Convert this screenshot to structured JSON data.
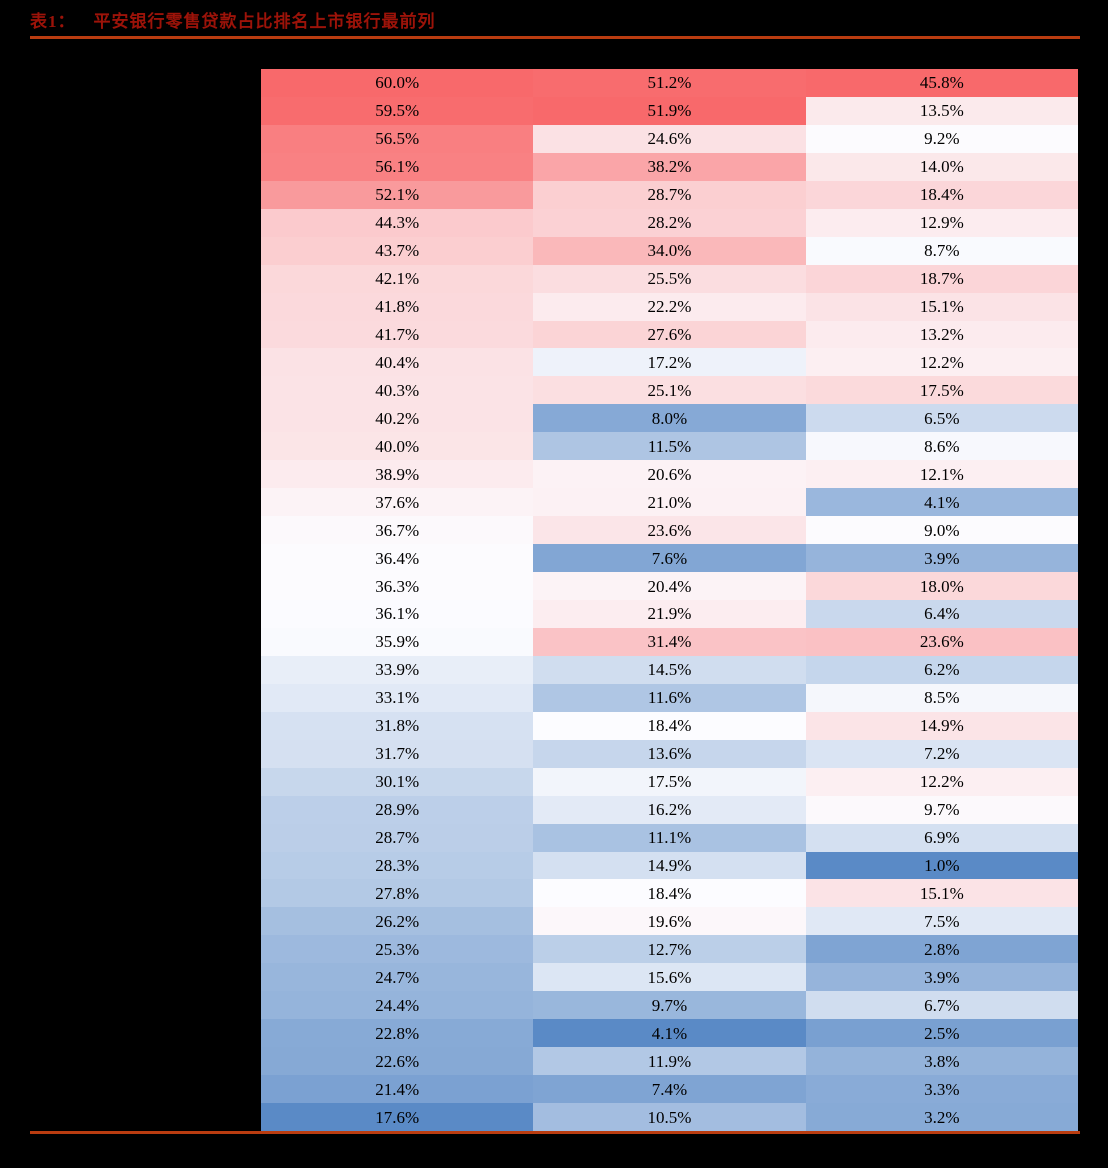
{
  "page": {
    "background_color": "#000000",
    "table_number": "表1：",
    "title": "平安银行零售贷款占比排名上市银行最前列",
    "title_color": "#9C1309",
    "rule_color": "#B93C10"
  },
  "chart_data": {
    "type": "heatmap",
    "title": "表1： 平安银行零售贷款占比排名上市银行最前列",
    "unit": "%",
    "columns": 3,
    "rows": [
      [
        "60.0%",
        "51.2%",
        "45.8%"
      ],
      [
        "59.5%",
        "51.9%",
        "13.5%"
      ],
      [
        "56.5%",
        "24.6%",
        "9.2%"
      ],
      [
        "56.1%",
        "38.2%",
        "14.0%"
      ],
      [
        "52.1%",
        "28.7%",
        "18.4%"
      ],
      [
        "44.3%",
        "28.2%",
        "12.9%"
      ],
      [
        "43.7%",
        "34.0%",
        "8.7%"
      ],
      [
        "42.1%",
        "25.5%",
        "18.7%"
      ],
      [
        "41.8%",
        "22.2%",
        "15.1%"
      ],
      [
        "41.7%",
        "27.6%",
        "13.2%"
      ],
      [
        "40.4%",
        "17.2%",
        "12.2%"
      ],
      [
        "40.3%",
        "25.1%",
        "17.5%"
      ],
      [
        "40.2%",
        "8.0%",
        "6.5%"
      ],
      [
        "40.0%",
        "11.5%",
        "8.6%"
      ],
      [
        "38.9%",
        "20.6%",
        "12.1%"
      ],
      [
        "37.6%",
        "21.0%",
        "4.1%"
      ],
      [
        "36.7%",
        "23.6%",
        "9.0%"
      ],
      [
        "36.4%",
        "7.6%",
        "3.9%"
      ],
      [
        "36.3%",
        "20.4%",
        "18.0%"
      ],
      [
        "36.1%",
        "21.9%",
        "6.4%"
      ],
      [
        "35.9%",
        "31.4%",
        "23.6%"
      ],
      [
        "33.9%",
        "14.5%",
        "6.2%"
      ],
      [
        "33.1%",
        "11.6%",
        "8.5%"
      ],
      [
        "31.8%",
        "18.4%",
        "14.9%"
      ],
      [
        "31.7%",
        "13.6%",
        "7.2%"
      ],
      [
        "30.1%",
        "17.5%",
        "12.2%"
      ],
      [
        "28.9%",
        "16.2%",
        "9.7%"
      ],
      [
        "28.7%",
        "11.1%",
        "6.9%"
      ],
      [
        "28.3%",
        "14.9%",
        "1.0%"
      ],
      [
        "27.8%",
        "18.4%",
        "15.1%"
      ],
      [
        "26.2%",
        "19.6%",
        "7.5%"
      ],
      [
        "25.3%",
        "12.7%",
        "2.8%"
      ],
      [
        "24.7%",
        "15.6%",
        "3.9%"
      ],
      [
        "24.4%",
        "9.7%",
        "6.7%"
      ],
      [
        "22.8%",
        "4.1%",
        "2.5%"
      ],
      [
        "22.6%",
        "11.9%",
        "3.8%"
      ],
      [
        "21.4%",
        "7.4%",
        "3.3%"
      ],
      [
        "17.6%",
        "10.5%",
        "3.2%"
      ]
    ],
    "color_scale": {
      "type": "3-color-diverging-per-column",
      "low_color": "#5A8AC6",
      "mid_color": "#FCFCFF",
      "high_color": "#F8696B",
      "midpoint": "median"
    },
    "cell_text_color": "#000000"
  }
}
